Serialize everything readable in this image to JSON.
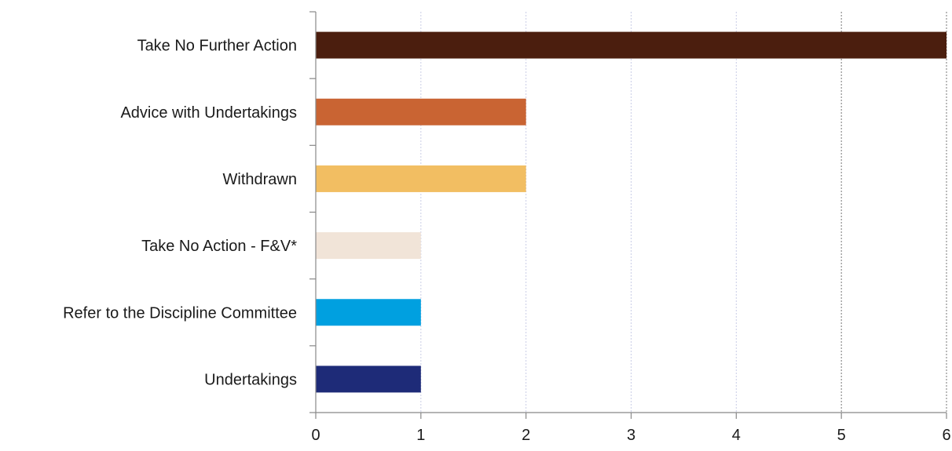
{
  "chart_data": {
    "type": "bar",
    "orientation": "horizontal",
    "title": "",
    "xlabel": "",
    "ylabel": "",
    "xlim": [
      0,
      6
    ],
    "x_ticks": [
      "0",
      "1",
      "2",
      "3",
      "4",
      "5",
      "6"
    ],
    "grid": "vertical dotted",
    "legend": "none",
    "categories": [
      "Take No Further Action",
      "Advice with Undertakings",
      "Withdrawn",
      "Take No Action - F&V*",
      "Refer to the Discipline Committee",
      "Undertakings"
    ],
    "values": [
      6,
      2,
      2,
      1,
      1,
      1
    ],
    "colors": [
      "#4b1e0e",
      "#c96433",
      "#f2be62",
      "#f1e4d8",
      "#00a0e0",
      "#1e2b78"
    ]
  }
}
